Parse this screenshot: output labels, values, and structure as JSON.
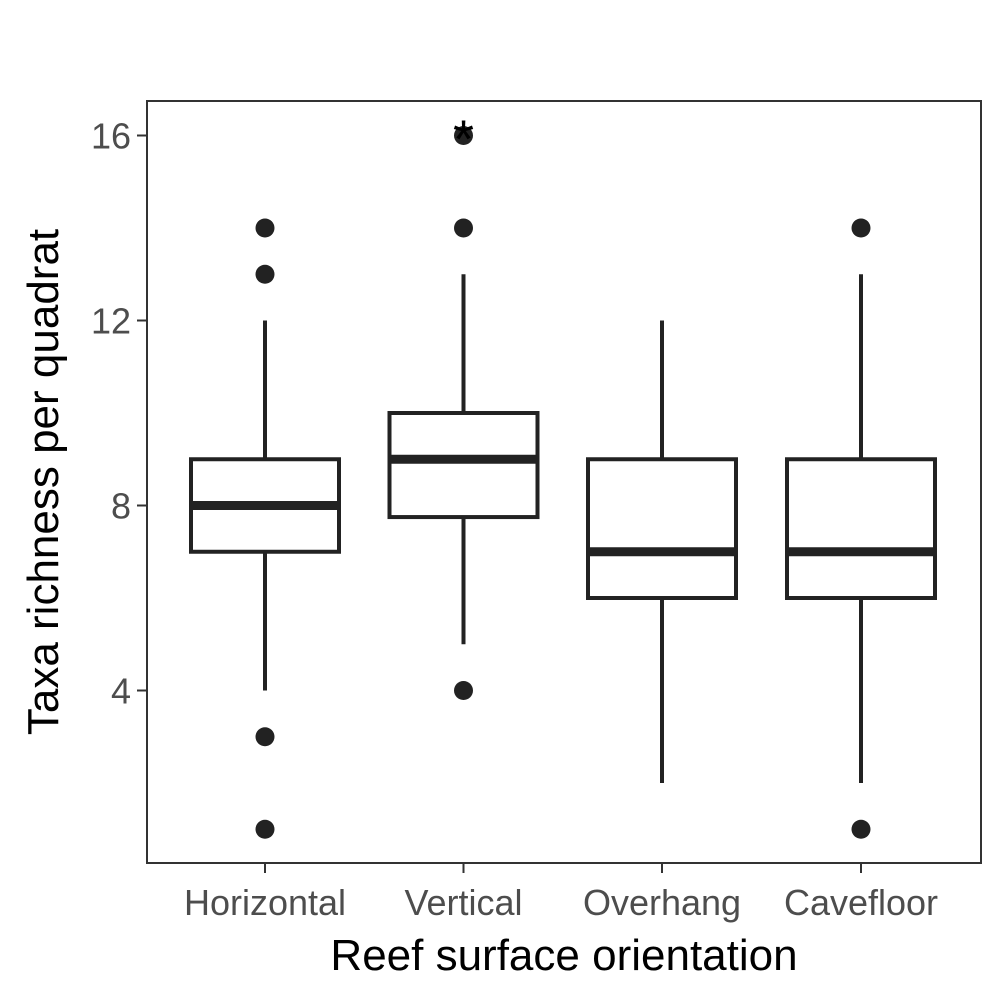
{
  "chart_data": {
    "type": "boxplot",
    "title": "",
    "xlabel": "Reef surface orientation",
    "ylabel": "Taxa richness per quadrat",
    "categories": [
      "Horizontal",
      "Vertical",
      "Overhang",
      "Cavefloor"
    ],
    "yticks": [
      4,
      8,
      12,
      16
    ],
    "ylim": [
      0.3,
      16.75
    ],
    "grid": false,
    "legend": "none",
    "colors": {
      "stroke": "#222222",
      "fill": "#ffffff",
      "panel_border": "#333333",
      "tick_text": "#4d4d4d"
    },
    "boxes": [
      {
        "category": "Horizontal",
        "whisker_low": 4,
        "q1": 7,
        "median": 8,
        "q3": 9,
        "whisker_high": 12,
        "outliers": [
          1,
          3,
          13,
          14
        ]
      },
      {
        "category": "Vertical",
        "whisker_low": 5,
        "q1": 7.75,
        "median": 9,
        "q3": 10,
        "whisker_high": 13,
        "outliers": [
          4,
          14,
          16
        ]
      },
      {
        "category": "Overhang",
        "whisker_low": 2,
        "q1": 6,
        "median": 7,
        "q3": 9,
        "whisker_high": 12,
        "outliers": []
      },
      {
        "category": "Cavefloor",
        "whisker_low": 2,
        "q1": 6,
        "median": 7,
        "q3": 9,
        "whisker_high": 13,
        "outliers": [
          1,
          14
        ]
      }
    ],
    "annotations": [
      {
        "text": "*",
        "category": "Vertical",
        "y": 16.3
      }
    ]
  }
}
